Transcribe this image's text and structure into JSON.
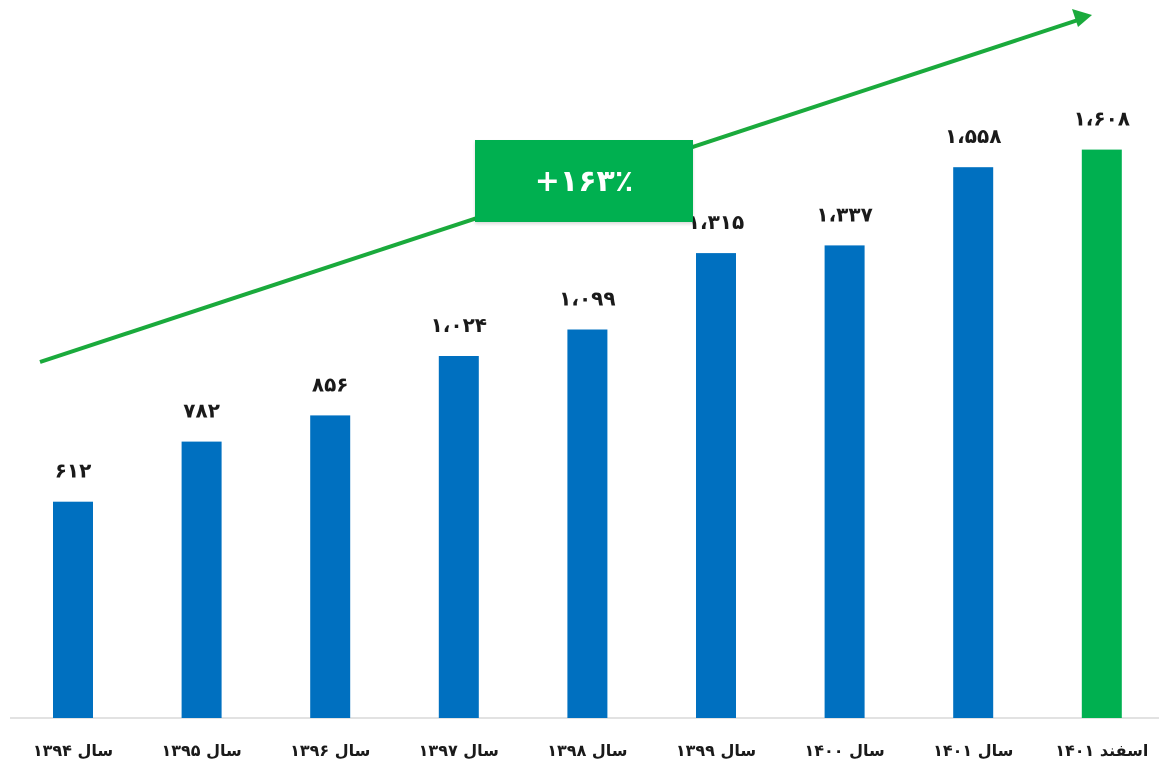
{
  "chart_data": {
    "type": "bar",
    "categories": [
      "سال ۱۳۹۴",
      "سال ۱۳۹۵",
      "سال ۱۳۹۶",
      "سال ۱۳۹۷",
      "سال ۱۳۹۸",
      "سال ۱۳۹۹",
      "سال ۱۴۰۰",
      "سال ۱۴۰۱",
      "اسفند ۱۴۰۱"
    ],
    "values": [
      612,
      782,
      856,
      1024,
      1099,
      1315,
      1337,
      1558,
      1608
    ],
    "value_labels": [
      "۶۱۲",
      "۷۸۲",
      "۸۵۶",
      "۱،۰۲۴",
      "۱،۰۹۹",
      "۱،۳۱۵",
      "۱،۳۳۷",
      "۱،۵۵۸",
      "۱،۶۰۸"
    ],
    "bar_colors": [
      "#0070c0",
      "#0070c0",
      "#0070c0",
      "#0070c0",
      "#0070c0",
      "#0070c0",
      "#0070c0",
      "#0070c0",
      "#00b050"
    ],
    "ylim": [
      0,
      2000
    ],
    "grid": false,
    "annotation": {
      "text": "+۱۶۳٪",
      "color": "#00b050"
    },
    "trend_arrow_color": "#1aaa3c"
  }
}
